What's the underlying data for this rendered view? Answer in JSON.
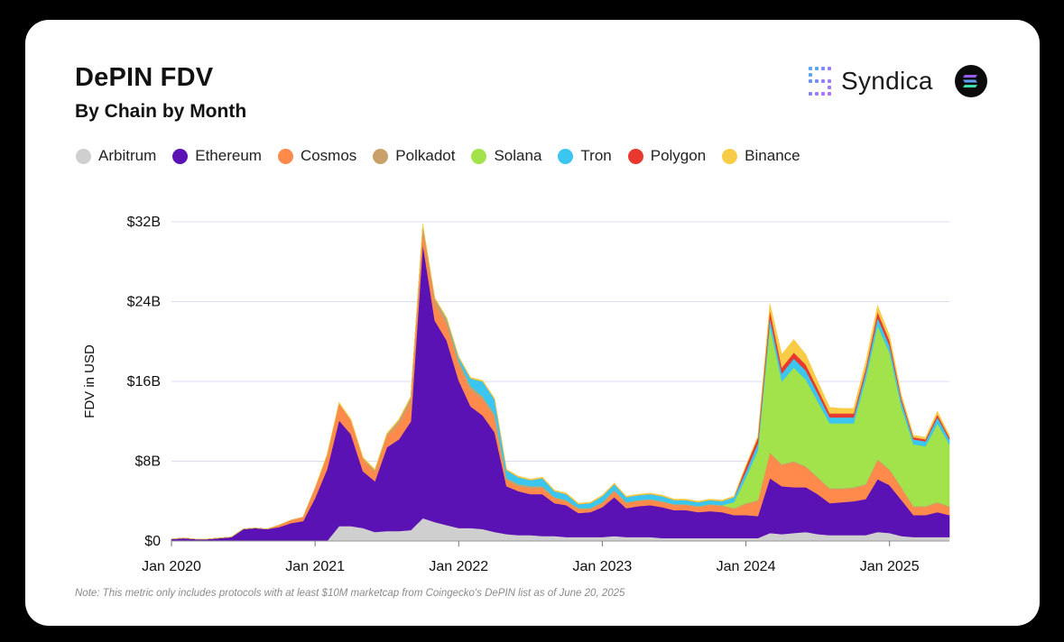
{
  "header": {
    "title": "DePIN FDV",
    "subtitle": "By Chain by Month",
    "brand": "Syndica"
  },
  "footer": {
    "note": "Note: This metric only includes protocols with at least $10M marketcap from Coingecko's DePIN list as of June 20, 2025"
  },
  "icons": {
    "brand_logo": "syndica-logo-icon",
    "solana_badge": "solana-logo-icon"
  },
  "chart_data": {
    "type": "area",
    "stacked": true,
    "title": "DePIN FDV",
    "subtitle": "By Chain by Month",
    "xlabel": "",
    "ylabel": "FDV in USD",
    "ylim": [
      0,
      32
    ],
    "y_unit": "B USD",
    "y_ticks": [
      "$0",
      "$8B",
      "$16B",
      "$24B",
      "$32B"
    ],
    "y_tick_values": [
      0,
      8,
      16,
      24,
      32
    ],
    "x_tick_labels": [
      "Jan 2020",
      "Jan 2021",
      "Jan 2022",
      "Jan 2023",
      "Jan 2024",
      "Jan 2025"
    ],
    "x_tick_values": [
      "2020-01",
      "2021-01",
      "2022-01",
      "2023-01",
      "2024-01",
      "2025-01"
    ],
    "grid": true,
    "legend_position": "top-left",
    "x": [
      "2020-01",
      "2020-02",
      "2020-03",
      "2020-04",
      "2020-05",
      "2020-06",
      "2020-07",
      "2020-08",
      "2020-09",
      "2020-10",
      "2020-11",
      "2020-12",
      "2021-01",
      "2021-02",
      "2021-03",
      "2021-04",
      "2021-05",
      "2021-06",
      "2021-07",
      "2021-08",
      "2021-09",
      "2021-10",
      "2021-11",
      "2021-12",
      "2022-01",
      "2022-02",
      "2022-03",
      "2022-04",
      "2022-05",
      "2022-06",
      "2022-07",
      "2022-08",
      "2022-09",
      "2022-10",
      "2022-11",
      "2022-12",
      "2023-01",
      "2023-02",
      "2023-03",
      "2023-04",
      "2023-05",
      "2023-06",
      "2023-07",
      "2023-08",
      "2023-09",
      "2023-10",
      "2023-11",
      "2023-12",
      "2024-01",
      "2024-02",
      "2024-03",
      "2024-04",
      "2024-05",
      "2024-06",
      "2024-07",
      "2024-08",
      "2024-09",
      "2024-10",
      "2024-11",
      "2024-12",
      "2025-01",
      "2025-02",
      "2025-03",
      "2025-04",
      "2025-05",
      "2025-06"
    ],
    "series": [
      {
        "name": "Arbitrum",
        "color": "#cfcfcf",
        "values": [
          0,
          0,
          0,
          0,
          0,
          0,
          0,
          0,
          0,
          0,
          0,
          0,
          0,
          0,
          1.5,
          1.5,
          1.3,
          0.9,
          1.0,
          1.0,
          1.1,
          2.3,
          1.9,
          1.6,
          1.3,
          1.3,
          1.2,
          0.9,
          0.7,
          0.6,
          0.6,
          0.5,
          0.5,
          0.4,
          0.4,
          0.4,
          0.4,
          0.5,
          0.4,
          0.4,
          0.4,
          0.3,
          0.3,
          0.3,
          0.3,
          0.3,
          0.3,
          0.3,
          0.3,
          0.3,
          0.8,
          0.7,
          0.8,
          0.9,
          0.7,
          0.6,
          0.6,
          0.6,
          0.6,
          0.9,
          0.8,
          0.5,
          0.4,
          0.4,
          0.4,
          0.4
        ]
      },
      {
        "name": "Ethereum",
        "color": "#5b12b4",
        "values": [
          0.2,
          0.3,
          0.2,
          0.2,
          0.3,
          0.4,
          1.2,
          1.3,
          1.2,
          1.4,
          1.8,
          2.0,
          4.3,
          7.2,
          10.6,
          9.2,
          5.7,
          5.1,
          8.4,
          9.2,
          10.9,
          27.5,
          20.2,
          18.5,
          14.8,
          12.2,
          11.4,
          10.0,
          4.8,
          4.4,
          4.1,
          4.2,
          3.3,
          3.2,
          2.4,
          2.5,
          3.0,
          3.9,
          2.9,
          3.1,
          3.2,
          3.1,
          2.8,
          2.8,
          2.6,
          2.7,
          2.6,
          2.3,
          2.3,
          2.2,
          5.5,
          4.8,
          4.6,
          4.5,
          4.0,
          3.2,
          3.3,
          3.4,
          3.6,
          5.3,
          4.8,
          3.6,
          2.2,
          2.2,
          2.5,
          2.2
        ]
      },
      {
        "name": "Cosmos",
        "color": "#ff8a4c",
        "values": [
          0,
          0,
          0,
          0,
          0,
          0,
          0,
          0,
          0,
          0.2,
          0.3,
          0.4,
          1.0,
          1.4,
          1.7,
          1.4,
          1.2,
          0.9,
          1.1,
          1.5,
          1.9,
          1.2,
          1.7,
          1.6,
          1.6,
          1.6,
          1.6,
          1.5,
          0.6,
          0.5,
          0.6,
          0.6,
          0.5,
          0.4,
          0.4,
          0.3,
          0.4,
          0.6,
          0.5,
          0.5,
          0.5,
          0.5,
          0.5,
          0.5,
          0.5,
          0.6,
          0.6,
          0.6,
          1.1,
          1.5,
          2.5,
          2.1,
          2.5,
          2.0,
          1.6,
          1.4,
          1.3,
          1.3,
          1.4,
          1.9,
          1.5,
          1.2,
          0.8,
          0.8,
          0.9,
          0.8
        ]
      },
      {
        "name": "Polkadot",
        "color": "#c9a06a",
        "values": [
          0,
          0,
          0,
          0,
          0,
          0,
          0,
          0,
          0,
          0,
          0,
          0,
          0,
          0,
          0,
          0,
          0.1,
          0.2,
          0.2,
          0.4,
          0.5,
          0.6,
          0.5,
          0.5,
          0.4,
          0.4,
          0.3,
          0.3,
          0.2,
          0.2,
          0.2,
          0.2,
          0.1,
          0.1,
          0.1,
          0.1,
          0.1,
          0.1,
          0.1,
          0.1,
          0.1,
          0.1,
          0.1,
          0.1,
          0.1,
          0.1,
          0.1,
          0.1,
          0.1,
          0.1,
          0.1,
          0.1,
          0.1,
          0.1,
          0.1,
          0.1,
          0.1,
          0.1,
          0.1,
          0.1,
          0.1,
          0.1,
          0.1,
          0.1,
          0.1,
          0.1
        ]
      },
      {
        "name": "Solana",
        "color": "#a2e24a",
        "values": [
          0,
          0,
          0,
          0,
          0,
          0,
          0,
          0,
          0,
          0,
          0,
          0,
          0,
          0,
          0,
          0,
          0,
          0,
          0,
          0,
          0,
          0,
          0,
          0,
          0,
          0,
          0,
          0,
          0,
          0,
          0,
          0,
          0,
          0,
          0,
          0,
          0,
          0,
          0,
          0,
          0,
          0,
          0,
          0,
          0,
          0,
          0,
          0.6,
          2.6,
          5.0,
          12.7,
          8.3,
          9.4,
          8.7,
          7.6,
          6.5,
          6.5,
          6.4,
          10.5,
          13.4,
          11.7,
          8.0,
          6.2,
          6.0,
          7.9,
          6.2
        ]
      },
      {
        "name": "Tron",
        "color": "#3ac6ef",
        "values": [
          0,
          0,
          0,
          0,
          0,
          0,
          0,
          0,
          0,
          0,
          0,
          0,
          0,
          0,
          0,
          0,
          0,
          0,
          0,
          0,
          0,
          0,
          0,
          0.1,
          0.3,
          0.8,
          1.5,
          1.5,
          0.8,
          0.7,
          0.6,
          0.8,
          0.6,
          0.6,
          0.4,
          0.5,
          0.6,
          0.6,
          0.5,
          0.5,
          0.5,
          0.5,
          0.4,
          0.4,
          0.4,
          0.4,
          0.4,
          0.5,
          0.6,
          0.7,
          0.8,
          0.8,
          0.9,
          0.9,
          0.8,
          0.6,
          0.6,
          0.6,
          0.7,
          0.8,
          0.7,
          0.6,
          0.5,
          0.5,
          0.6,
          0.5
        ]
      },
      {
        "name": "Polygon",
        "color": "#e9382f",
        "values": [
          0,
          0,
          0,
          0,
          0,
          0,
          0,
          0,
          0,
          0,
          0,
          0,
          0,
          0,
          0,
          0,
          0,
          0,
          0,
          0,
          0,
          0,
          0,
          0,
          0,
          0,
          0,
          0,
          0,
          0,
          0,
          0,
          0,
          0,
          0,
          0,
          0,
          0,
          0,
          0,
          0,
          0,
          0,
          0,
          0,
          0,
          0,
          0,
          0.5,
          0.6,
          0.8,
          0.6,
          0.6,
          0.6,
          0.5,
          0.4,
          0.4,
          0.4,
          0.4,
          0.6,
          0.5,
          0.3,
          0.2,
          0.2,
          0.3,
          0.2
        ]
      },
      {
        "name": "Binance",
        "color": "#f8cc47",
        "values": [
          0,
          0,
          0,
          0,
          0,
          0,
          0,
          0,
          0,
          0,
          0,
          0,
          0,
          0.1,
          0.1,
          0.1,
          0.1,
          0.1,
          0.1,
          0.1,
          0.1,
          0.2,
          0.1,
          0.1,
          0.1,
          0.1,
          0.1,
          0.1,
          0.1,
          0.1,
          0.1,
          0.1,
          0.1,
          0.1,
          0.1,
          0.1,
          0.1,
          0.1,
          0.1,
          0.1,
          0.1,
          0.1,
          0.1,
          0.1,
          0.1,
          0.1,
          0.1,
          0.1,
          0.1,
          0.1,
          0.6,
          1.3,
          1.3,
          1.0,
          0.7,
          0.6,
          0.5,
          0.5,
          0.6,
          0.6,
          0.5,
          0.3,
          0.2,
          0.2,
          0.3,
          0.2
        ]
      }
    ]
  }
}
